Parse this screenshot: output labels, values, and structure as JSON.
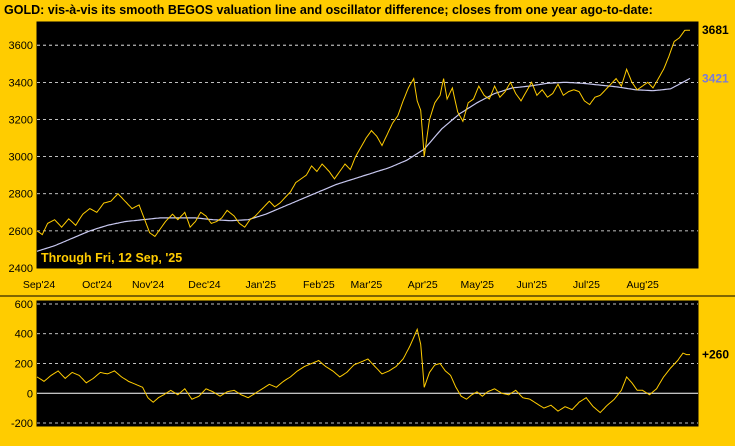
{
  "title": "GOLD:  vis-à-vis its smooth BEGOS valuation line and oscillator difference; closes from one year ago-to-date:",
  "colors": {
    "background": "#ffcc00",
    "panel": "#000000",
    "price": "#ffcc00",
    "valuation": "#c8c8f0",
    "valuation_label": "#7a7ad8",
    "grid": "#ffffff",
    "zero_line": "#ffffff",
    "axis_text": "#000000"
  },
  "chart_data": [
    {
      "type": "line",
      "panel": "price",
      "annotation": "Through Fri, 12 Sep, '25",
      "x_labels": [
        "Sep'24",
        "Oct'24",
        "Nov'24",
        "Dec'24",
        "Jan'25",
        "Feb'25",
        "Mar'25",
        "Apr'25",
        "May'25",
        "Jun'25",
        "Jul'25",
        "Aug'25"
      ],
      "y_ticks": [
        "2400",
        "2600",
        "2800",
        "3000",
        "3200",
        "3400",
        "3600"
      ],
      "ylim": [
        2400,
        3725
      ],
      "grid": "dashed horizontal",
      "end_labels": {
        "price": "3681",
        "valuation": "3421"
      },
      "series": [
        {
          "key": "price",
          "anchors": [
            [
              0,
              2600
            ],
            [
              3,
              2580
            ],
            [
              6,
              2640
            ],
            [
              10,
              2660
            ],
            [
              14,
              2620
            ],
            [
              18,
              2665
            ],
            [
              22,
              2630
            ],
            [
              26,
              2690
            ],
            [
              30,
              2720
            ],
            [
              34,
              2700
            ],
            [
              38,
              2750
            ],
            [
              42,
              2760
            ],
            [
              46,
              2800
            ],
            [
              50,
              2760
            ],
            [
              54,
              2720
            ],
            [
              58,
              2740
            ],
            [
              62,
              2640
            ],
            [
              64,
              2590
            ],
            [
              67,
              2570
            ],
            [
              70,
              2610
            ],
            [
              73,
              2650
            ],
            [
              77,
              2690
            ],
            [
              80,
              2660
            ],
            [
              84,
              2700
            ],
            [
              87,
              2620
            ],
            [
              90,
              2650
            ],
            [
              93,
              2700
            ],
            [
              96,
              2680
            ],
            [
              99,
              2640
            ],
            [
              102,
              2650
            ],
            [
              105,
              2670
            ],
            [
              108,
              2710
            ],
            [
              112,
              2680
            ],
            [
              115,
              2640
            ],
            [
              118,
              2620
            ],
            [
              121,
              2660
            ],
            [
              124,
              2680
            ],
            [
              128,
              2720
            ],
            [
              132,
              2760
            ],
            [
              135,
              2730
            ],
            [
              138,
              2750
            ],
            [
              141,
              2780
            ],
            [
              144,
              2810
            ],
            [
              147,
              2860
            ],
            [
              150,
              2880
            ],
            [
              153,
              2900
            ],
            [
              156,
              2950
            ],
            [
              159,
              2920
            ],
            [
              162,
              2960
            ],
            [
              166,
              2920
            ],
            [
              169,
              2880
            ],
            [
              172,
              2920
            ],
            [
              175,
              2960
            ],
            [
              178,
              2930
            ],
            [
              181,
              3000
            ],
            [
              184,
              3050
            ],
            [
              187,
              3100
            ],
            [
              190,
              3140
            ],
            [
              193,
              3110
            ],
            [
              196,
              3060
            ],
            [
              199,
              3120
            ],
            [
              202,
              3180
            ],
            [
              205,
              3220
            ],
            [
              208,
              3300
            ],
            [
              211,
              3370
            ],
            [
              214,
              3420
            ],
            [
              216,
              3300
            ],
            [
              218,
              3250
            ],
            [
              220,
              3000
            ],
            [
              223,
              3200
            ],
            [
              226,
              3290
            ],
            [
              229,
              3330
            ],
            [
              231,
              3420
            ],
            [
              233,
              3310
            ],
            [
              236,
              3370
            ],
            [
              239,
              3240
            ],
            [
              242,
              3190
            ],
            [
              245,
              3290
            ],
            [
              248,
              3310
            ],
            [
              251,
              3380
            ],
            [
              254,
              3330
            ],
            [
              257,
              3310
            ],
            [
              260,
              3380
            ],
            [
              263,
              3320
            ],
            [
              266,
              3350
            ],
            [
              269,
              3400
            ],
            [
              272,
              3340
            ],
            [
              275,
              3300
            ],
            [
              278,
              3350
            ],
            [
              281,
              3400
            ],
            [
              284,
              3330
            ],
            [
              287,
              3360
            ],
            [
              290,
              3320
            ],
            [
              293,
              3340
            ],
            [
              296,
              3390
            ],
            [
              299,
              3330
            ],
            [
              302,
              3350
            ],
            [
              305,
              3360
            ],
            [
              308,
              3350
            ],
            [
              311,
              3300
            ],
            [
              314,
              3280
            ],
            [
              317,
              3320
            ],
            [
              320,
              3330
            ],
            [
              323,
              3360
            ],
            [
              326,
              3390
            ],
            [
              329,
              3420
            ],
            [
              332,
              3380
            ],
            [
              335,
              3470
            ],
            [
              338,
              3400
            ],
            [
              341,
              3360
            ],
            [
              344,
              3380
            ],
            [
              347,
              3400
            ],
            [
              350,
              3370
            ],
            [
              353,
              3420
            ],
            [
              356,
              3470
            ],
            [
              359,
              3540
            ],
            [
              362,
              3620
            ],
            [
              365,
              3640
            ],
            [
              368,
              3680
            ],
            [
              371,
              3681
            ]
          ]
        },
        {
          "key": "valuation",
          "anchors": [
            [
              0,
              2490
            ],
            [
              10,
              2520
            ],
            [
              20,
              2560
            ],
            [
              30,
              2600
            ],
            [
              40,
              2630
            ],
            [
              50,
              2650
            ],
            [
              60,
              2660
            ],
            [
              70,
              2670
            ],
            [
              80,
              2670
            ],
            [
              90,
              2670
            ],
            [
              100,
              2660
            ],
            [
              110,
              2655
            ],
            [
              120,
              2660
            ],
            [
              130,
              2690
            ],
            [
              140,
              2730
            ],
            [
              150,
              2770
            ],
            [
              160,
              2810
            ],
            [
              170,
              2850
            ],
            [
              180,
              2880
            ],
            [
              190,
              2910
            ],
            [
              200,
              2940
            ],
            [
              210,
              2980
            ],
            [
              220,
              3040
            ],
            [
              230,
              3150
            ],
            [
              240,
              3230
            ],
            [
              250,
              3290
            ],
            [
              260,
              3340
            ],
            [
              270,
              3370
            ],
            [
              280,
              3380
            ],
            [
              290,
              3395
            ],
            [
              300,
              3400
            ],
            [
              310,
              3395
            ],
            [
              320,
              3385
            ],
            [
              330,
              3375
            ],
            [
              340,
              3360
            ],
            [
              350,
              3355
            ],
            [
              360,
              3365
            ],
            [
              371,
              3421
            ]
          ]
        }
      ]
    },
    {
      "type": "line",
      "panel": "oscillator",
      "y_ticks": [
        "600",
        "400",
        "200",
        "0",
        "-200"
      ],
      "ylim": [
        -220,
        620
      ],
      "grid": "dashed horizontal",
      "end_label": "+260",
      "series": [
        {
          "key": "oscillator",
          "anchors": [
            [
              0,
              110
            ],
            [
              4,
              80
            ],
            [
              8,
              120
            ],
            [
              12,
              150
            ],
            [
              16,
              100
            ],
            [
              20,
              140
            ],
            [
              24,
              120
            ],
            [
              28,
              70
            ],
            [
              32,
              100
            ],
            [
              36,
              140
            ],
            [
              40,
              130
            ],
            [
              44,
              150
            ],
            [
              48,
              110
            ],
            [
              52,
              80
            ],
            [
              56,
              60
            ],
            [
              60,
              40
            ],
            [
              63,
              -30
            ],
            [
              66,
              -60
            ],
            [
              69,
              -30
            ],
            [
              72,
              -10
            ],
            [
              76,
              20
            ],
            [
              80,
              -10
            ],
            [
              84,
              30
            ],
            [
              88,
              -40
            ],
            [
              92,
              -20
            ],
            [
              96,
              30
            ],
            [
              100,
              10
            ],
            [
              104,
              -20
            ],
            [
              108,
              10
            ],
            [
              112,
              20
            ],
            [
              116,
              -10
            ],
            [
              120,
              -30
            ],
            [
              124,
              0
            ],
            [
              128,
              30
            ],
            [
              132,
              60
            ],
            [
              136,
              40
            ],
            [
              140,
              80
            ],
            [
              144,
              110
            ],
            [
              148,
              150
            ],
            [
              152,
              180
            ],
            [
              156,
              200
            ],
            [
              160,
              220
            ],
            [
              164,
              180
            ],
            [
              168,
              150
            ],
            [
              172,
              110
            ],
            [
              176,
              140
            ],
            [
              180,
              190
            ],
            [
              184,
              210
            ],
            [
              188,
              230
            ],
            [
              192,
              180
            ],
            [
              196,
              130
            ],
            [
              200,
              150
            ],
            [
              204,
              180
            ],
            [
              208,
              230
            ],
            [
              212,
              320
            ],
            [
              216,
              430
            ],
            [
              218,
              330
            ],
            [
              220,
              40
            ],
            [
              223,
              140
            ],
            [
              226,
              190
            ],
            [
              229,
              200
            ],
            [
              232,
              150
            ],
            [
              235,
              120
            ],
            [
              238,
              40
            ],
            [
              241,
              -20
            ],
            [
              244,
              -40
            ],
            [
              247,
              -10
            ],
            [
              250,
              10
            ],
            [
              253,
              -20
            ],
            [
              256,
              10
            ],
            [
              260,
              30
            ],
            [
              264,
              0
            ],
            [
              268,
              -10
            ],
            [
              272,
              20
            ],
            [
              276,
              -30
            ],
            [
              280,
              -40
            ],
            [
              284,
              -70
            ],
            [
              288,
              -100
            ],
            [
              292,
              -80
            ],
            [
              296,
              -120
            ],
            [
              300,
              -90
            ],
            [
              304,
              -110
            ],
            [
              308,
              -60
            ],
            [
              312,
              -30
            ],
            [
              316,
              -90
            ],
            [
              320,
              -130
            ],
            [
              324,
              -80
            ],
            [
              328,
              -40
            ],
            [
              332,
              20
            ],
            [
              335,
              110
            ],
            [
              338,
              70
            ],
            [
              341,
              20
            ],
            [
              344,
              20
            ],
            [
              348,
              -10
            ],
            [
              352,
              30
            ],
            [
              356,
              110
            ],
            [
              360,
              170
            ],
            [
              364,
              220
            ],
            [
              367,
              270
            ],
            [
              369,
              260
            ],
            [
              371,
              260
            ]
          ]
        }
      ]
    }
  ]
}
